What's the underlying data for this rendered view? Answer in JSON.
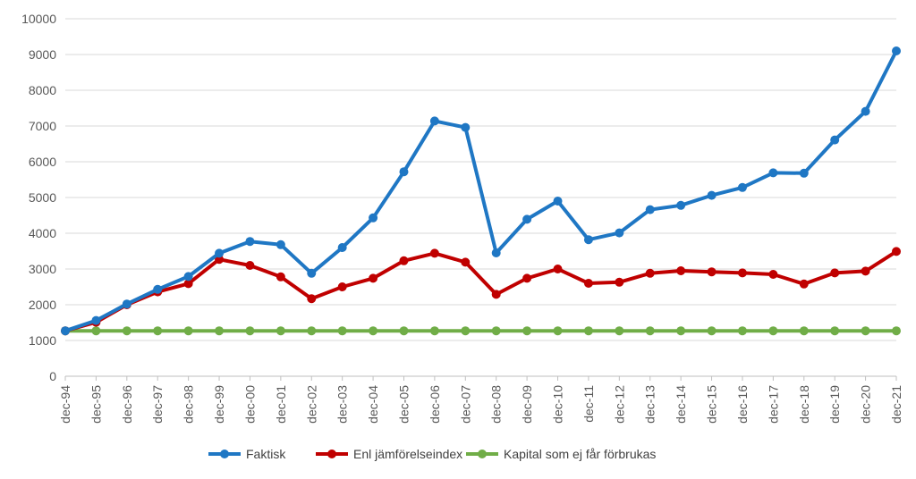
{
  "chart_data": {
    "type": "line",
    "categories": [
      "dec-94",
      "dec-95",
      "dec-96",
      "dec-97",
      "dec-98",
      "dec-99",
      "dec-00",
      "dec-01",
      "dec-02",
      "dec-03",
      "dec-04",
      "dec-05",
      "dec-06",
      "dec-07",
      "dec-08",
      "dec-09",
      "dec-10",
      "dec-11",
      "dec-12",
      "dec-13",
      "dec-14",
      "dec-15",
      "dec-16",
      "dec-17",
      "dec-18",
      "dec-19",
      "dec-20",
      "dec-21"
    ],
    "ylim": [
      0,
      10000
    ],
    "yticks": [
      0,
      1000,
      2000,
      3000,
      4000,
      5000,
      6000,
      7000,
      8000,
      9000,
      10000
    ],
    "grid": true,
    "legend_position": "bottom",
    "series": [
      {
        "name": "Faktisk",
        "color": "#1f77c4",
        "values": [
          1270,
          1560,
          2020,
          2430,
          2790,
          3440,
          3770,
          3680,
          2880,
          3600,
          4430,
          5720,
          7140,
          6960,
          3450,
          4390,
          4900,
          3820,
          4010,
          4660,
          4780,
          5060,
          5280,
          5690,
          5680,
          6610,
          7410,
          9100
        ]
      },
      {
        "name": "Enl jämförelseindex",
        "color": "#c00000",
        "values": [
          1270,
          1510,
          2000,
          2360,
          2590,
          3270,
          3100,
          2780,
          2170,
          2500,
          2740,
          3230,
          3440,
          3190,
          2290,
          2740,
          3000,
          2600,
          2630,
          2880,
          2950,
          2920,
          2890,
          2850,
          2580,
          2890,
          2940,
          3490
        ]
      },
      {
        "name": "Kapital som ej får förbrukas",
        "color": "#70ad47",
        "values": [
          1270,
          1270,
          1270,
          1270,
          1270,
          1270,
          1270,
          1270,
          1270,
          1270,
          1270,
          1270,
          1270,
          1270,
          1270,
          1270,
          1270,
          1270,
          1270,
          1270,
          1270,
          1270,
          1270,
          1270,
          1270,
          1270,
          1270,
          1270
        ]
      }
    ]
  }
}
